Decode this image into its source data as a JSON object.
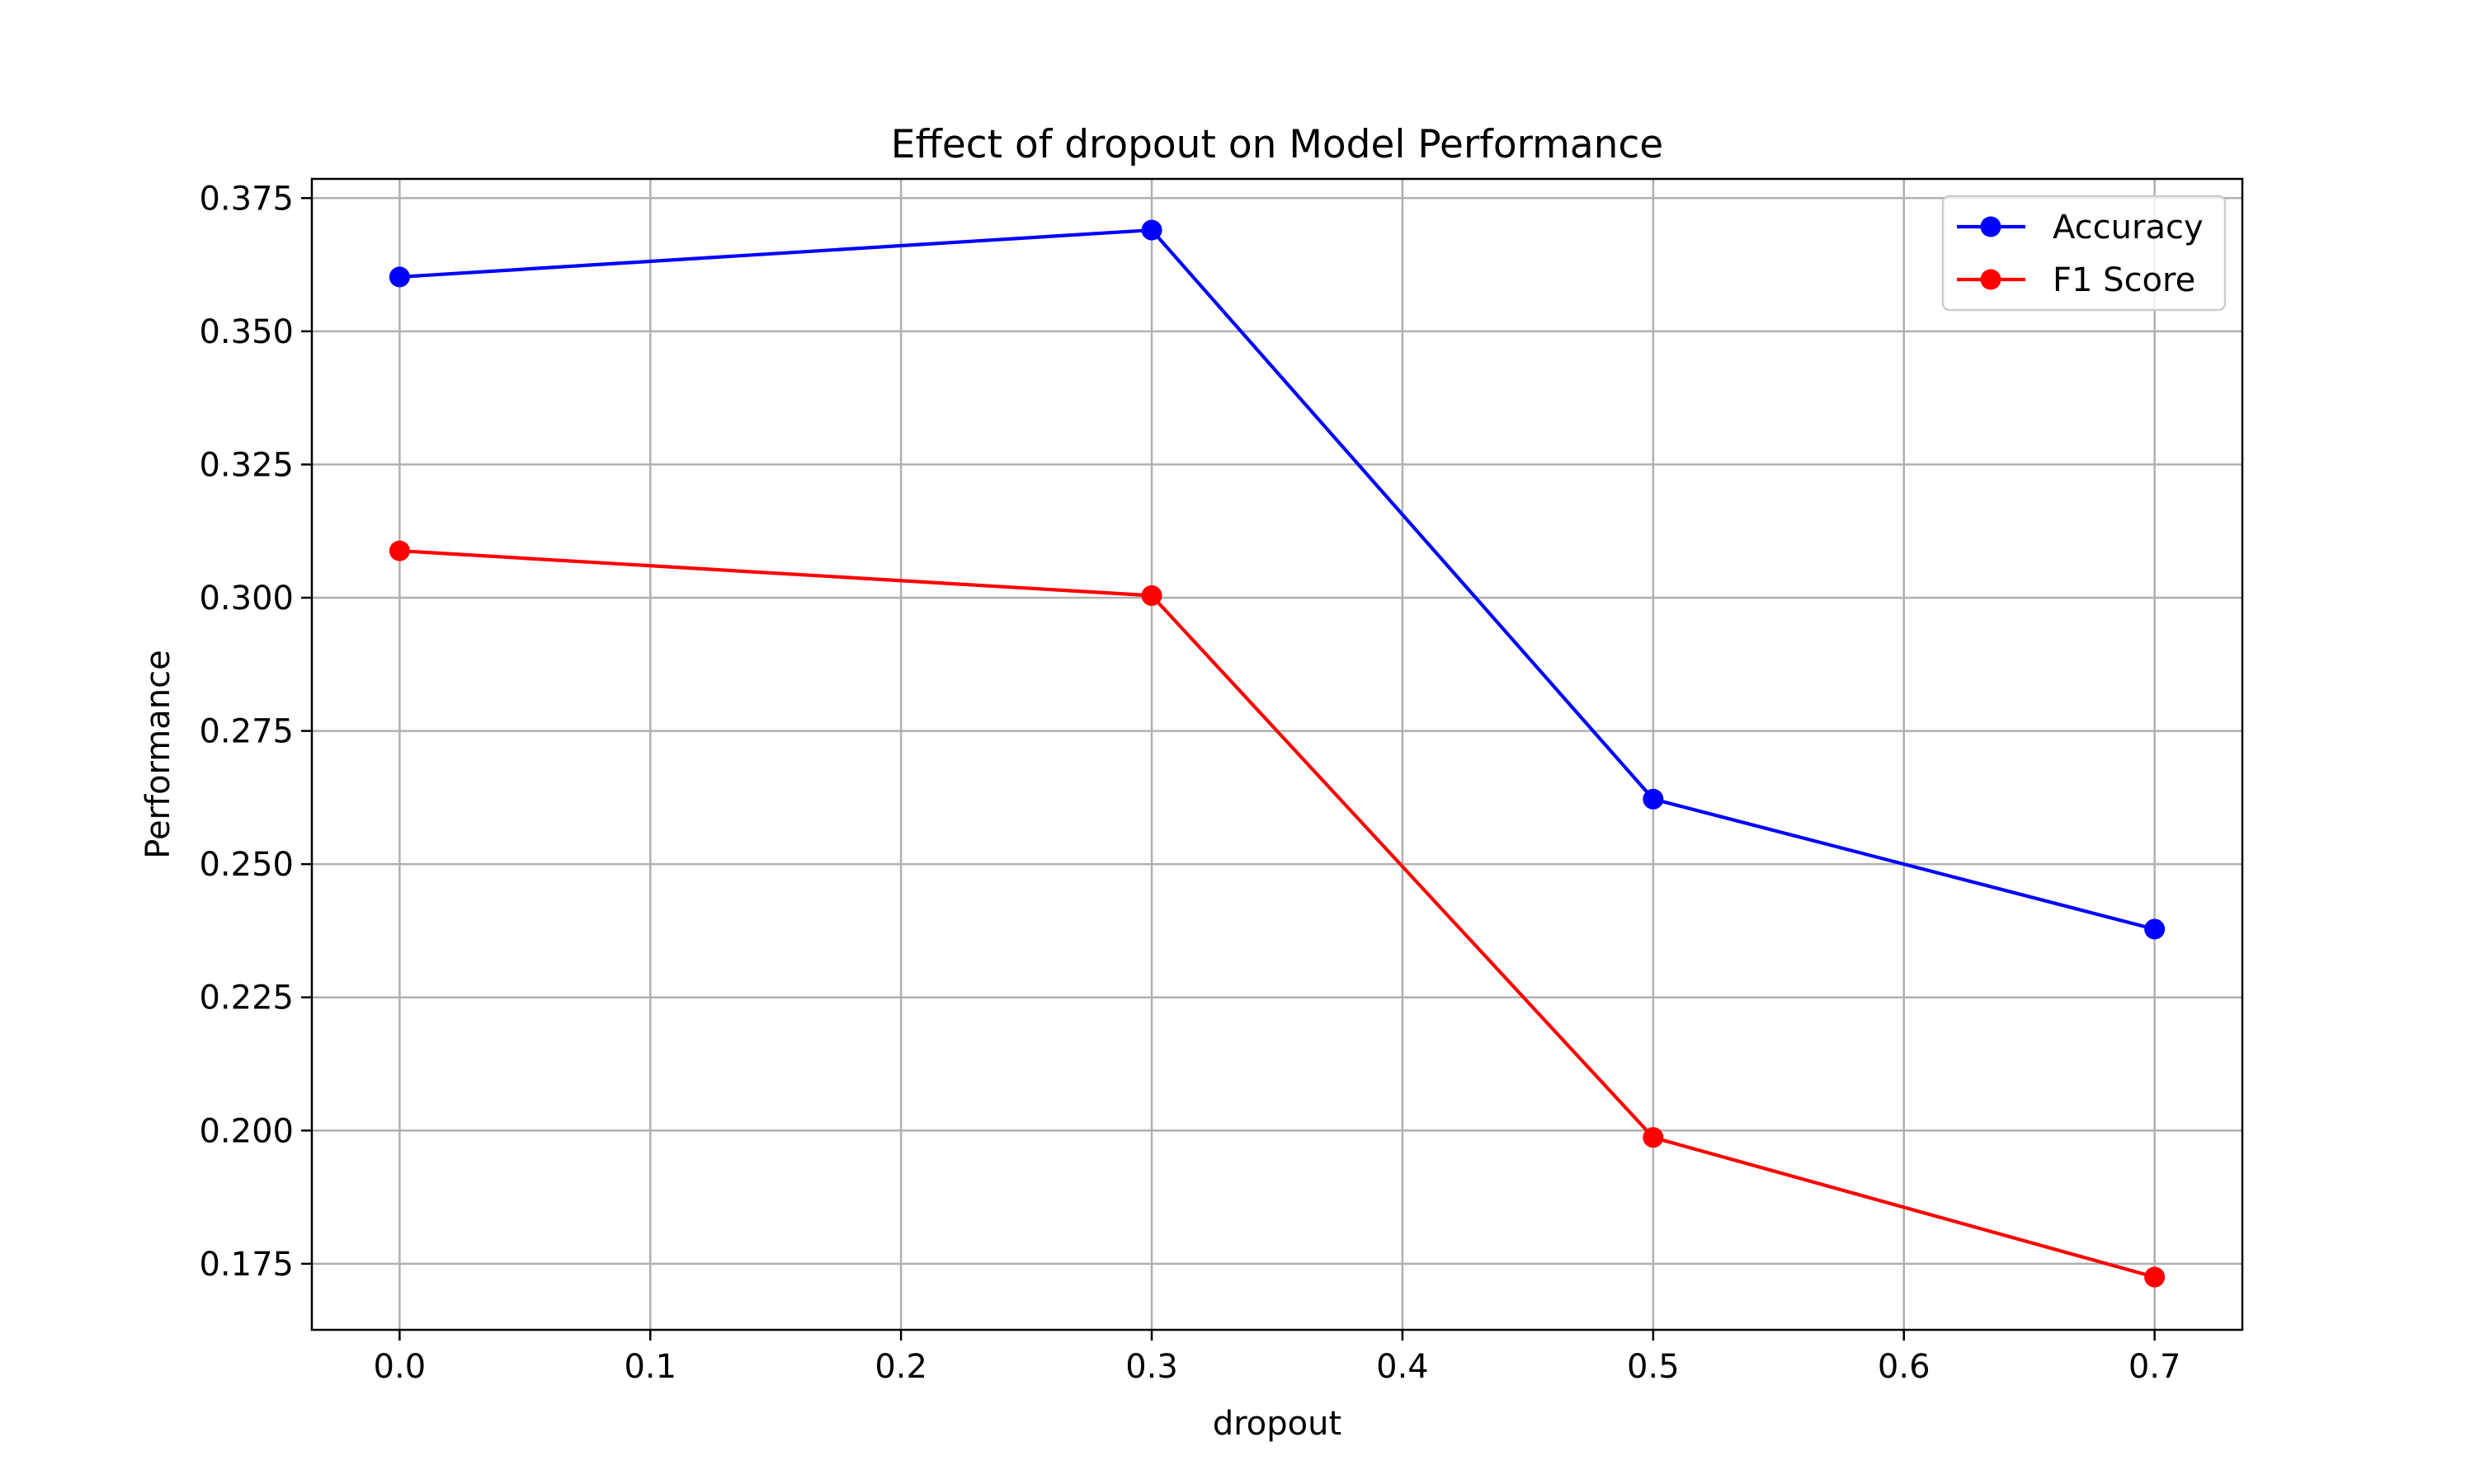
{
  "chart_data": {
    "type": "line",
    "title": "Effect of dropout on Model Performance",
    "xlabel": "dropout",
    "ylabel": "Performance",
    "x": [
      0.0,
      0.3,
      0.5,
      0.7
    ],
    "series": [
      {
        "name": "Accuracy",
        "color": "#0000ff",
        "values": [
          0.3602,
          0.369,
          0.2622,
          0.2378
        ]
      },
      {
        "name": "F1 Score",
        "color": "#ff0000",
        "values": [
          0.3088,
          0.3004,
          0.1987,
          0.1725
        ]
      }
    ],
    "xlim": [
      -0.035,
      0.735
    ],
    "ylim": [
      0.1626,
      0.3786
    ],
    "xticks": [
      0.0,
      0.1,
      0.2,
      0.3,
      0.4,
      0.5,
      0.6,
      0.7
    ],
    "xtick_labels": [
      "0.0",
      "0.1",
      "0.2",
      "0.3",
      "0.4",
      "0.5",
      "0.6",
      "0.7"
    ],
    "yticks": [
      0.175,
      0.2,
      0.225,
      0.25,
      0.275,
      0.3,
      0.325,
      0.35,
      0.375
    ],
    "ytick_labels": [
      "0.175",
      "0.200",
      "0.225",
      "0.250",
      "0.275",
      "0.300",
      "0.325",
      "0.350",
      "0.375"
    ],
    "grid": true,
    "legend_position": "top-right"
  }
}
